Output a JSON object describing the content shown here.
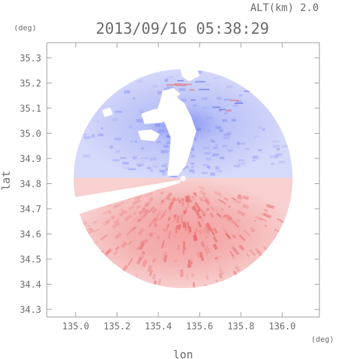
{
  "chart_data": {
    "type": "heatmap",
    "title": "2013/09/16 05:38:29",
    "altitude_label": "ALT(km) 2.0",
    "xlabel": "lon",
    "ylabel": "lat",
    "x_unit": "(deg)",
    "y_unit": "(deg)",
    "xlim": [
      134.86,
      136.18
    ],
    "ylim": [
      34.27,
      35.36
    ],
    "x_ticks": [
      {
        "value": 135.0,
        "label": "135.0"
      },
      {
        "value": 135.2,
        "label": "135.2"
      },
      {
        "value": 135.4,
        "label": "135.4"
      },
      {
        "value": 135.6,
        "label": "135.6"
      },
      {
        "value": 135.8,
        "label": "135.8"
      },
      {
        "value": 136.0,
        "label": "136.0"
      }
    ],
    "y_ticks": [
      {
        "value": 34.3,
        "label": "34.3"
      },
      {
        "value": 34.4,
        "label": "34.4"
      },
      {
        "value": 34.5,
        "label": "34.5"
      },
      {
        "value": 34.6,
        "label": "34.6"
      },
      {
        "value": 34.7,
        "label": "34.7"
      },
      {
        "value": 34.8,
        "label": "34.8"
      },
      {
        "value": 34.9,
        "label": "34.9"
      },
      {
        "value": 35.0,
        "label": "35.0"
      },
      {
        "value": 35.1,
        "label": "35.1"
      },
      {
        "value": 35.2,
        "label": "35.2"
      },
      {
        "value": 35.3,
        "label": "35.3"
      }
    ],
    "radar_site": {
      "lon": 135.52,
      "lat": 34.82
    },
    "radar_range_deg": 0.53,
    "colors": {
      "toward_radar": "#6f7ff0",
      "away_from_radar": "#f06f6f",
      "no_data": "#ffffff",
      "axis": "#9a9a9a"
    }
  }
}
